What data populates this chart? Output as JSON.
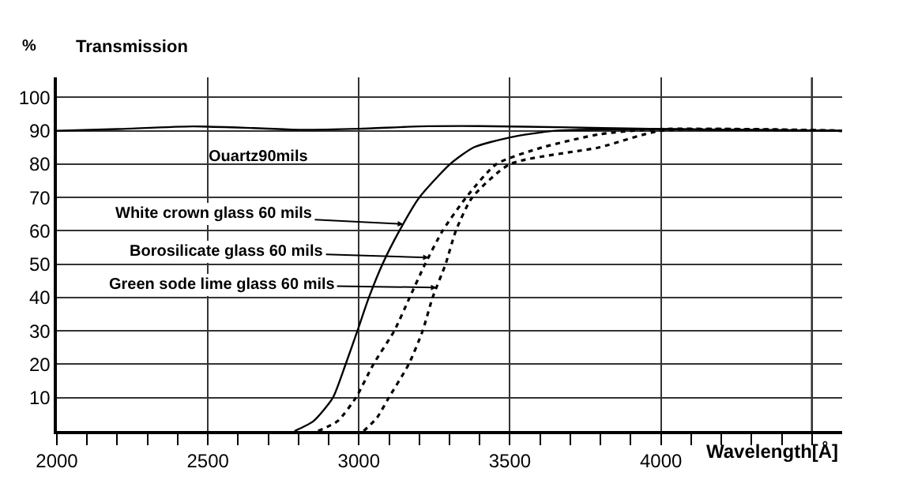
{
  "chart_data": {
    "type": "line",
    "title": "Transmission",
    "ylabel": "%",
    "xlabel": "Wavelength[Å]",
    "xlim": [
      2000,
      4600
    ],
    "ylim": [
      0,
      106
    ],
    "xticks": [
      2000,
      {
        "value": 2100,
        "label": null
      },
      {
        "value": 2200,
        "label": null
      },
      {
        "value": 2300,
        "label": null
      },
      {
        "value": 2400,
        "label": null
      },
      2500,
      {
        "value": 2600,
        "label": null
      },
      {
        "value": 2700,
        "label": null
      },
      {
        "value": 2800,
        "label": null
      },
      {
        "value": 2900,
        "label": null
      },
      3000,
      {
        "value": 3100,
        "label": null
      },
      {
        "value": 3200,
        "label": null
      },
      {
        "value": 3300,
        "label": null
      },
      {
        "value": 3400,
        "label": null
      },
      3500,
      {
        "value": 3600,
        "label": null
      },
      {
        "value": 3700,
        "label": null
      },
      {
        "value": 3800,
        "label": null
      },
      {
        "value": 3900,
        "label": null
      },
      4000,
      {
        "value": 4100,
        "label": null
      },
      {
        "value": 4200,
        "label": null
      },
      {
        "value": 4300,
        "label": null
      },
      {
        "value": 4400,
        "label": null
      },
      {
        "value": 4500,
        "label": null
      }
    ],
    "yticks": [
      10,
      20,
      30,
      40,
      50,
      60,
      70,
      80,
      90,
      100
    ],
    "grid": true,
    "marker": "none",
    "ref_lines": [
      {
        "axis": "x",
        "value": 4500,
        "color": "#333333"
      }
    ],
    "series": [
      {
        "color": "#000000",
        "line_style": "solid",
        "x": [
          2000,
          2200,
          2450,
          2650,
          2800,
          3000,
          3200,
          3400,
          3700,
          4000,
          4300,
          4600
        ],
        "values": [
          90,
          90.5,
          91.3,
          90.8,
          90.3,
          90.6,
          91.3,
          91.4,
          91,
          90.5,
          90.2,
          90
        ]
      },
      {
        "color": "#000000",
        "line_style": "solid",
        "x": [
          2787,
          2850,
          2914,
          2956,
          2995,
          3033,
          3078,
          3134,
          3200,
          3302,
          3380,
          3500,
          3650,
          4000,
          4600
        ],
        "values": [
          0,
          3,
          10,
          20,
          30,
          40,
          50,
          60,
          70,
          80,
          85,
          88,
          90,
          90.5,
          90
        ]
      },
      {
        "color": "#000000",
        "line_style": "dotted",
        "x": [
          2865,
          2930,
          2990,
          3048,
          3117,
          3168,
          3219,
          3277,
          3355,
          3455,
          3607,
          3800,
          4000,
          4600
        ],
        "values": [
          0,
          3,
          10,
          20,
          30,
          40,
          50,
          60,
          70,
          80,
          85,
          89,
          90.5,
          90
        ]
      },
      {
        "color": "#000000",
        "line_style": "dotted",
        "x": [
          3016,
          3060,
          3099,
          3165,
          3211,
          3244,
          3287,
          3321,
          3375,
          3500,
          3795,
          4000,
          4600
        ],
        "values": [
          0,
          4,
          10,
          20,
          30,
          40,
          50,
          60,
          70,
          80,
          85,
          90,
          90
        ]
      }
    ],
    "annotations": [
      "Ouartz90mils",
      {
        "text": "White crown glass 60 mils",
        "x": 3147,
        "y": 62
      },
      {
        "text": "Borosilicate glass 60 mils",
        "x": 3231,
        "y": 52
      },
      {
        "text": "Green sode lime glass 60 mils",
        "x": 3257,
        "y": 43
      }
    ]
  }
}
